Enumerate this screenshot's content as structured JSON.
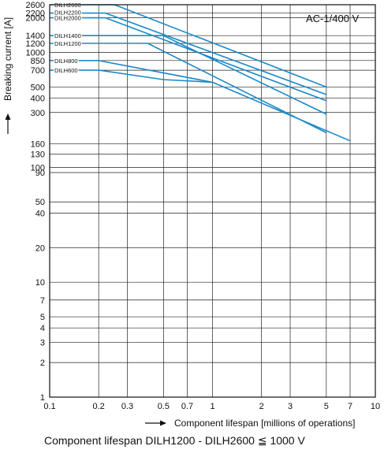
{
  "chart_data": {
    "type": "line",
    "title": "",
    "annotation": "AC-1/400 V",
    "xlabel": "Component lifespan [millions of operations]",
    "ylabel": "Breaking current  [A]",
    "x_scale": "log",
    "y_scale": "log",
    "xlim": [
      0.1,
      10
    ],
    "ylim": [
      1,
      2600
    ],
    "x_ticks": [
      0.1,
      0.2,
      0.3,
      0.5,
      0.7,
      1,
      2,
      3,
      5,
      7,
      10
    ],
    "x_tick_labels": [
      "0.1",
      "0.2",
      "0.3",
      "0.5",
      "0.7",
      "1",
      "2",
      "3",
      "5",
      "7",
      "10"
    ],
    "y_ticks": [
      1,
      2,
      3,
      4,
      5,
      7,
      10,
      20,
      40,
      50,
      90,
      100,
      130,
      160,
      300,
      400,
      500,
      700,
      850,
      1000,
      1200,
      1400,
      2000,
      2200,
      2600
    ],
    "y_tick_labels": [
      "1",
      "2",
      "3",
      "4",
      "5",
      "7",
      "10",
      "20",
      "40",
      "50",
      "90",
      "100",
      "130",
      "160",
      "300",
      "400",
      "500",
      "700",
      "850",
      "1000",
      "1200",
      "1400",
      "2000",
      "2200",
      "2600"
    ],
    "grid": true,
    "series_color": "#1a8ac8",
    "series": [
      {
        "name": "DILH2600",
        "x": [
          0.1,
          0.25,
          5
        ],
        "y": [
          2600,
          2600,
          500
        ]
      },
      {
        "name": "DILH2200",
        "x": [
          0.1,
          0.22,
          5
        ],
        "y": [
          2200,
          2200,
          430
        ]
      },
      {
        "name": "DILH2000",
        "x": [
          0.1,
          0.22,
          5
        ],
        "y": [
          2000,
          2000,
          380
        ]
      },
      {
        "name": "DILH1400",
        "x": [
          0.1,
          0.5,
          5
        ],
        "y": [
          1400,
          1400,
          290
        ]
      },
      {
        "name": "DILH1200",
        "x": [
          0.1,
          0.4,
          5
        ],
        "y": [
          1200,
          1200,
          200
        ]
      },
      {
        "name": "DILH800",
        "x": [
          0.1,
          0.2,
          1.0,
          7
        ],
        "y": [
          850,
          850,
          550,
          170
        ]
      },
      {
        "name": "DILH600",
        "x": [
          0.1,
          0.2,
          0.5,
          1.0
        ],
        "y": [
          700,
          700,
          580,
          550
        ]
      }
    ]
  },
  "caption": "Component lifespan DILH1200 - DILH2600 ≦ 1000 V"
}
